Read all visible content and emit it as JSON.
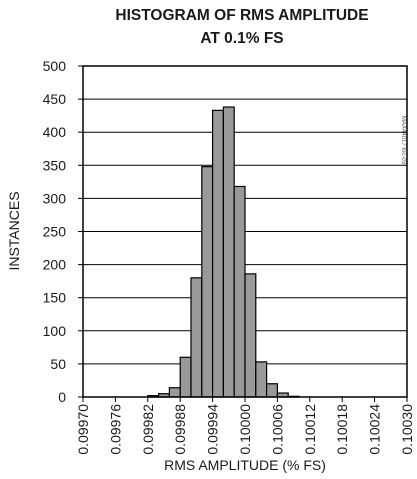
{
  "chart_data": {
    "type": "bar",
    "title": [
      "HISTOGRAM OF RMS AMPLITUDE",
      "AT 0.1% FS"
    ],
    "xlabel": "RMS AMPLITUDE (% FS)",
    "ylabel": "INSTANCES",
    "ylim": [
      0,
      500
    ],
    "yticks": [
      "0",
      "50",
      "100",
      "150",
      "200",
      "250",
      "300",
      "350",
      "400",
      "450",
      "500"
    ],
    "xlim": [
      0.0997,
      0.1003
    ],
    "xticks": [
      "0.09970",
      "0.09976",
      "0.09982",
      "0.09988",
      "0.09994",
      "0.10000",
      "0.10006",
      "0.10012",
      "0.10018",
      "0.10024",
      "0.10030"
    ],
    "bin_width": 2e-05,
    "bins_start": [
      0.09982,
      0.09984,
      0.09986,
      0.09988,
      0.0999,
      0.09992,
      0.09994,
      0.09996,
      0.09998,
      0.1,
      0.10002,
      0.10004,
      0.10006,
      0.10008,
      0.1001,
      0.10012,
      0.10014,
      0.10016
    ],
    "values": [
      2,
      5,
      14,
      60,
      180,
      348,
      433,
      438,
      318,
      186,
      53,
      20,
      6,
      1,
      0,
      0,
      0,
      0
    ],
    "bar_color": "#999999",
    "grid": "horizontal",
    "side_code": "MAX44017 toc-03"
  }
}
